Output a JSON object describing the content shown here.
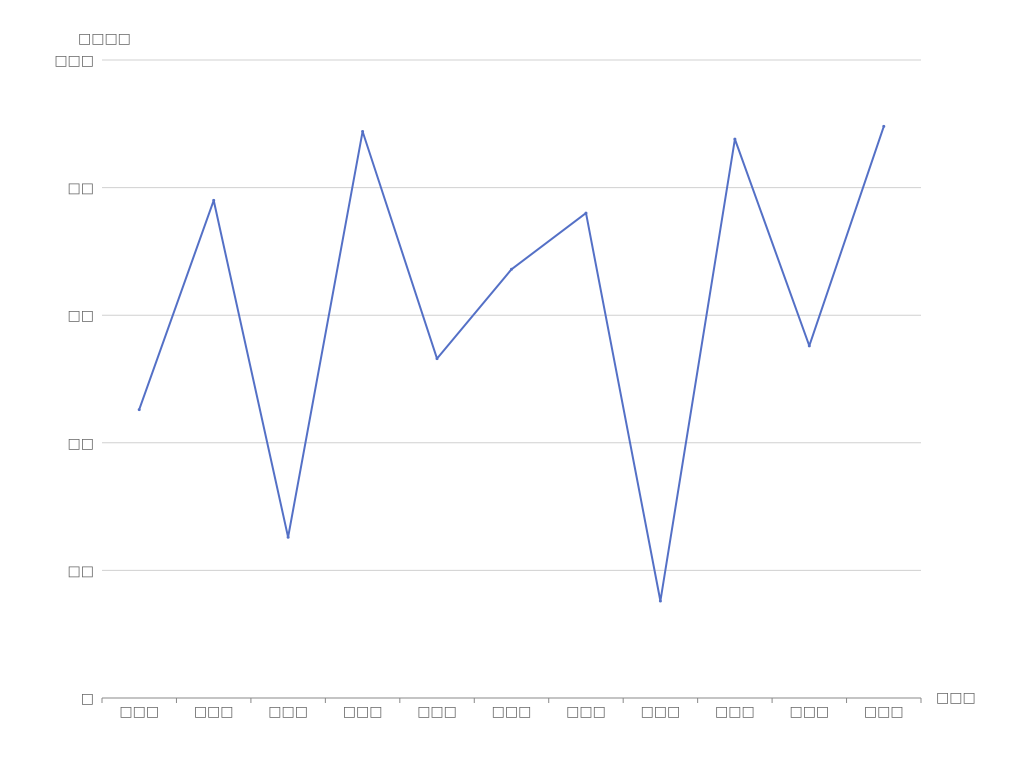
{
  "chart_data": {
    "type": "line",
    "title": "",
    "ylabel": "□□□□",
    "xlabel": "□□□",
    "ylim": [
      0,
      250
    ],
    "y_ticks": [
      0,
      50,
      100,
      150,
      200,
      250
    ],
    "y_tick_labels": [
      "□",
      "□□",
      "□□",
      "□□",
      "□□",
      "□□□"
    ],
    "categories": [
      "□□□",
      "□□□",
      "□□□",
      "□□□",
      "□□□",
      "□□□",
      "□□□",
      "□□□",
      "□□□",
      "□□□",
      "□□□"
    ],
    "series": [
      {
        "color": "#5470c6",
        "values": [
          113,
          195,
          63,
          222,
          133,
          168,
          190,
          38,
          219,
          138,
          224
        ]
      }
    ],
    "grid": true,
    "legend": "none"
  }
}
